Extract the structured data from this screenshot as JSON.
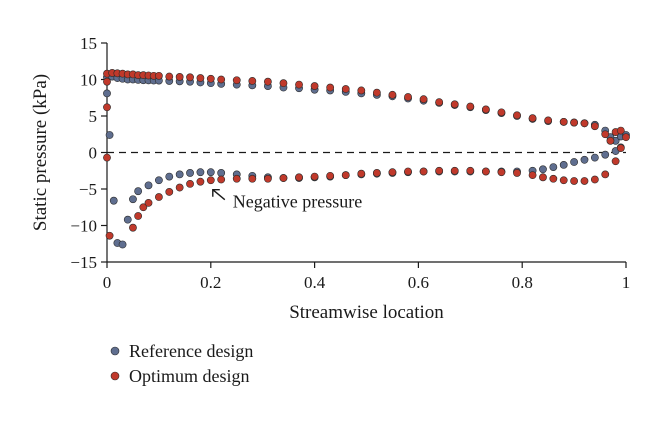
{
  "chart_data": {
    "type": "scatter",
    "title": "",
    "xlabel": "Streamwise location",
    "ylabel": "Static pressure (kPa)",
    "xlim": [
      0,
      1
    ],
    "ylim": [
      -15,
      15
    ],
    "xticks": [
      0,
      0.2,
      0.4,
      0.6,
      0.8,
      1
    ],
    "xtick_labels": [
      "0",
      "0.2",
      "0.4",
      "0.6",
      "0.8",
      "1"
    ],
    "yticks": [
      -15,
      -10,
      -5,
      0,
      5,
      10,
      15
    ],
    "ytick_labels": [
      "−15",
      "−10",
      "−5",
      "0",
      "5",
      "10",
      "15"
    ],
    "grid": false,
    "reference_line": {
      "y": 0,
      "style": "dashed"
    },
    "annotation": {
      "text": "Negative pressure",
      "target": [
        0.2,
        -4.0
      ],
      "arrow": true
    },
    "legend": {
      "placement": "bottom-left"
    },
    "series": [
      {
        "name": "Reference design",
        "color": "#5f6e8f",
        "points": [
          [
            0.0,
            10.3
          ],
          [
            0.01,
            10.4
          ],
          [
            0.02,
            10.2
          ],
          [
            0.03,
            10.1
          ],
          [
            0.04,
            10.0
          ],
          [
            0.05,
            10.0
          ],
          [
            0.06,
            9.95
          ],
          [
            0.07,
            9.9
          ],
          [
            0.08,
            9.88
          ],
          [
            0.09,
            9.86
          ],
          [
            0.1,
            9.85
          ],
          [
            0.12,
            9.8
          ],
          [
            0.14,
            9.75
          ],
          [
            0.16,
            9.7
          ],
          [
            0.18,
            9.6
          ],
          [
            0.2,
            9.5
          ],
          [
            0.22,
            9.4
          ],
          [
            0.25,
            9.3
          ],
          [
            0.28,
            9.2
          ],
          [
            0.31,
            9.1
          ],
          [
            0.34,
            8.9
          ],
          [
            0.37,
            8.8
          ],
          [
            0.4,
            8.6
          ],
          [
            0.43,
            8.5
          ],
          [
            0.46,
            8.3
          ],
          [
            0.49,
            8.1
          ],
          [
            0.52,
            7.9
          ],
          [
            0.55,
            7.7
          ],
          [
            0.58,
            7.4
          ],
          [
            0.61,
            7.1
          ],
          [
            0.64,
            6.8
          ],
          [
            0.67,
            6.5
          ],
          [
            0.7,
            6.2
          ],
          [
            0.73,
            5.8
          ],
          [
            0.76,
            5.4
          ],
          [
            0.79,
            5.0
          ],
          [
            0.82,
            4.6
          ],
          [
            0.85,
            4.3
          ],
          [
            0.88,
            4.2
          ],
          [
            0.9,
            4.1
          ],
          [
            0.92,
            4.0
          ],
          [
            0.94,
            3.8
          ],
          [
            0.96,
            3.0
          ],
          [
            0.97,
            2.1
          ],
          [
            0.98,
            1.6
          ],
          [
            0.99,
            2.2
          ],
          [
            1.0,
            2.4
          ],
          [
            0.0,
            8.1
          ],
          [
            0.005,
            2.4
          ],
          [
            0.013,
            -6.6
          ],
          [
            0.02,
            -12.4
          ],
          [
            0.03,
            -12.6
          ],
          [
            0.04,
            -9.2
          ],
          [
            0.05,
            -6.4
          ],
          [
            0.06,
            -5.3
          ],
          [
            0.08,
            -4.5
          ],
          [
            0.1,
            -3.8
          ],
          [
            0.12,
            -3.3
          ],
          [
            0.14,
            -3.0
          ],
          [
            0.16,
            -2.8
          ],
          [
            0.18,
            -2.7
          ],
          [
            0.2,
            -2.7
          ],
          [
            0.22,
            -2.8
          ],
          [
            0.25,
            -3.0
          ],
          [
            0.28,
            -3.2
          ],
          [
            0.31,
            -3.4
          ],
          [
            0.34,
            -3.5
          ],
          [
            0.37,
            -3.5
          ],
          [
            0.4,
            -3.4
          ],
          [
            0.43,
            -3.3
          ],
          [
            0.46,
            -3.1
          ],
          [
            0.49,
            -3.0
          ],
          [
            0.52,
            -2.9
          ],
          [
            0.55,
            -2.8
          ],
          [
            0.58,
            -2.7
          ],
          [
            0.61,
            -2.6
          ],
          [
            0.64,
            -2.6
          ],
          [
            0.67,
            -2.6
          ],
          [
            0.7,
            -2.6
          ],
          [
            0.73,
            -2.6
          ],
          [
            0.76,
            -2.6
          ],
          [
            0.79,
            -2.6
          ],
          [
            0.82,
            -2.5
          ],
          [
            0.84,
            -2.3
          ],
          [
            0.86,
            -2.0
          ],
          [
            0.88,
            -1.7
          ],
          [
            0.9,
            -1.3
          ],
          [
            0.92,
            -1.0
          ],
          [
            0.94,
            -0.7
          ],
          [
            0.96,
            -0.3
          ],
          [
            0.98,
            0.2
          ],
          [
            0.99,
            0.7
          ]
        ]
      },
      {
        "name": "Optimum design",
        "color": "#c0392b",
        "points": [
          [
            0.0,
            10.8
          ],
          [
            0.01,
            10.9
          ],
          [
            0.02,
            10.85
          ],
          [
            0.03,
            10.8
          ],
          [
            0.04,
            10.7
          ],
          [
            0.05,
            10.7
          ],
          [
            0.06,
            10.6
          ],
          [
            0.07,
            10.6
          ],
          [
            0.08,
            10.55
          ],
          [
            0.09,
            10.5
          ],
          [
            0.1,
            10.5
          ],
          [
            0.12,
            10.4
          ],
          [
            0.14,
            10.35
          ],
          [
            0.16,
            10.3
          ],
          [
            0.18,
            10.2
          ],
          [
            0.2,
            10.1
          ],
          [
            0.22,
            10.0
          ],
          [
            0.25,
            9.9
          ],
          [
            0.28,
            9.8
          ],
          [
            0.31,
            9.7
          ],
          [
            0.34,
            9.5
          ],
          [
            0.37,
            9.3
          ],
          [
            0.4,
            9.1
          ],
          [
            0.43,
            8.9
          ],
          [
            0.46,
            8.7
          ],
          [
            0.49,
            8.5
          ],
          [
            0.52,
            8.2
          ],
          [
            0.55,
            7.9
          ],
          [
            0.58,
            7.6
          ],
          [
            0.61,
            7.3
          ],
          [
            0.64,
            6.9
          ],
          [
            0.67,
            6.6
          ],
          [
            0.7,
            6.3
          ],
          [
            0.73,
            5.9
          ],
          [
            0.76,
            5.5
          ],
          [
            0.79,
            5.1
          ],
          [
            0.82,
            4.7
          ],
          [
            0.85,
            4.4
          ],
          [
            0.88,
            4.2
          ],
          [
            0.9,
            4.1
          ],
          [
            0.92,
            4.0
          ],
          [
            0.94,
            3.6
          ],
          [
            0.96,
            2.5
          ],
          [
            0.97,
            1.6
          ],
          [
            0.98,
            2.8
          ],
          [
            0.99,
            3.0
          ],
          [
            1.0,
            2.1
          ],
          [
            0.0,
            9.7
          ],
          [
            0.0,
            6.2
          ],
          [
            0.0,
            -0.7
          ],
          [
            0.005,
            -11.4
          ],
          [
            0.05,
            -10.3
          ],
          [
            0.06,
            -8.7
          ],
          [
            0.07,
            -7.5
          ],
          [
            0.08,
            -6.9
          ],
          [
            0.1,
            -6.1
          ],
          [
            0.12,
            -5.4
          ],
          [
            0.14,
            -4.8
          ],
          [
            0.16,
            -4.3
          ],
          [
            0.18,
            -4.0
          ],
          [
            0.2,
            -3.8
          ],
          [
            0.22,
            -3.7
          ],
          [
            0.25,
            -3.6
          ],
          [
            0.28,
            -3.6
          ],
          [
            0.31,
            -3.6
          ],
          [
            0.34,
            -3.5
          ],
          [
            0.37,
            -3.4
          ],
          [
            0.4,
            -3.3
          ],
          [
            0.43,
            -3.2
          ],
          [
            0.46,
            -3.1
          ],
          [
            0.49,
            -2.9
          ],
          [
            0.52,
            -2.8
          ],
          [
            0.55,
            -2.7
          ],
          [
            0.58,
            -2.6
          ],
          [
            0.61,
            -2.6
          ],
          [
            0.64,
            -2.5
          ],
          [
            0.67,
            -2.5
          ],
          [
            0.7,
            -2.5
          ],
          [
            0.73,
            -2.6
          ],
          [
            0.76,
            -2.7
          ],
          [
            0.79,
            -2.8
          ],
          [
            0.82,
            -3.1
          ],
          [
            0.84,
            -3.4
          ],
          [
            0.86,
            -3.6
          ],
          [
            0.88,
            -3.8
          ],
          [
            0.9,
            -3.9
          ],
          [
            0.92,
            -3.9
          ],
          [
            0.94,
            -3.7
          ],
          [
            0.96,
            -3.0
          ],
          [
            0.98,
            -1.2
          ],
          [
            0.99,
            0.6
          ]
        ]
      }
    ]
  }
}
